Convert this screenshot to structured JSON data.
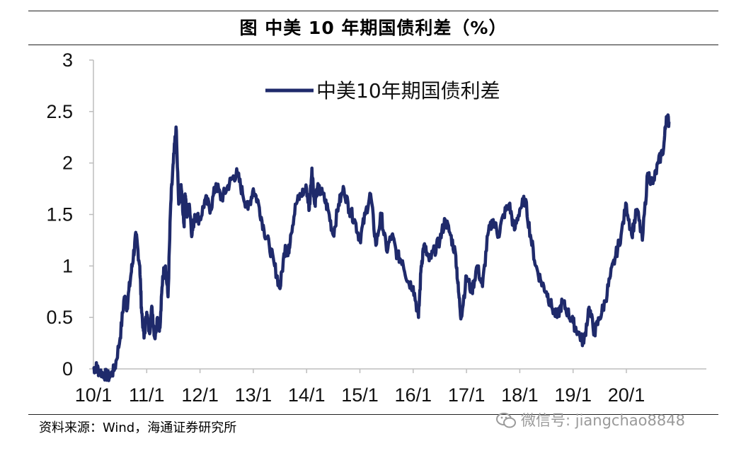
{
  "figure": {
    "title": "图  中美 10 年期国债利差（%）",
    "source": "资料来源：Wind，海通证券研究所",
    "watermark": "微信号: jiangchao8848"
  },
  "chart_data": {
    "type": "line",
    "title": "图  中美 10 年期国债利差（%）",
    "xlabel": "",
    "ylabel": "",
    "ylim": [
      0,
      3
    ],
    "yticks": [
      "0",
      "0.5",
      "1",
      "1.5",
      "2",
      "2.5",
      "3"
    ],
    "xticks": [
      "10/1",
      "11/1",
      "12/1",
      "13/1",
      "14/1",
      "15/1",
      "16/1",
      "17/1",
      "18/1",
      "19/1",
      "20/1"
    ],
    "xrange": [
      2010.0,
      2020.83
    ],
    "legend_position": "top-center",
    "grid": false,
    "series": [
      {
        "name": "中美10年期国债利差",
        "color": "#1f2a6b",
        "x": [
          2010.0,
          2010.05,
          2010.1,
          2010.2,
          2010.3,
          2010.4,
          2010.5,
          2010.58,
          2010.63,
          2010.7,
          2010.75,
          2010.8,
          2010.87,
          2010.9,
          2010.95,
          2011.0,
          2011.05,
          2011.1,
          2011.15,
          2011.2,
          2011.25,
          2011.3,
          2011.35,
          2011.4,
          2011.45,
          2011.5,
          2011.55,
          2011.6,
          2011.65,
          2011.7,
          2011.72,
          2011.75,
          2011.8,
          2011.85,
          2011.9,
          2012.0,
          2012.1,
          2012.2,
          2012.3,
          2012.4,
          2012.5,
          2012.6,
          2012.7,
          2012.8,
          2012.9,
          2013.0,
          2013.1,
          2013.2,
          2013.3,
          2013.4,
          2013.5,
          2013.6,
          2013.65,
          2013.7,
          2013.8,
          2013.9,
          2014.0,
          2014.05,
          2014.1,
          2014.15,
          2014.2,
          2014.3,
          2014.4,
          2014.5,
          2014.6,
          2014.7,
          2014.8,
          2014.9,
          2015.0,
          2015.1,
          2015.2,
          2015.3,
          2015.4,
          2015.5,
          2015.6,
          2015.7,
          2015.8,
          2015.9,
          2016.0,
          2016.1,
          2016.15,
          2016.2,
          2016.3,
          2016.4,
          2016.5,
          2016.6,
          2016.7,
          2016.8,
          2016.85,
          2016.9,
          2017.0,
          2017.1,
          2017.2,
          2017.3,
          2017.4,
          2017.5,
          2017.6,
          2017.7,
          2017.8,
          2017.9,
          2018.0,
          2018.1,
          2018.2,
          2018.3,
          2018.4,
          2018.5,
          2018.6,
          2018.7,
          2018.8,
          2018.9,
          2019.0,
          2019.1,
          2019.2,
          2019.3,
          2019.4,
          2019.5,
          2019.6,
          2019.7,
          2019.8,
          2019.9,
          2020.0,
          2020.1,
          2020.2,
          2020.3,
          2020.4,
          2020.5,
          2020.6,
          2020.7,
          2020.75,
          2020.8
        ],
        "values": [
          0.0,
          0.02,
          -0.02,
          -0.05,
          -0.08,
          0.0,
          0.3,
          0.7,
          0.6,
          0.9,
          1.1,
          1.3,
          1.0,
          0.6,
          0.3,
          0.55,
          0.35,
          0.6,
          0.3,
          0.5,
          0.4,
          0.9,
          1.0,
          0.7,
          1.6,
          2.0,
          2.35,
          1.6,
          1.75,
          1.4,
          1.7,
          1.5,
          1.6,
          1.3,
          1.5,
          1.45,
          1.65,
          1.55,
          1.8,
          1.65,
          1.75,
          1.85,
          1.9,
          1.7,
          1.55,
          1.75,
          1.6,
          1.35,
          1.2,
          1.0,
          0.78,
          1.2,
          1.1,
          1.3,
          1.6,
          1.7,
          1.75,
          1.55,
          1.95,
          1.6,
          1.75,
          1.7,
          1.55,
          1.3,
          1.6,
          1.75,
          1.55,
          1.45,
          1.25,
          1.5,
          1.7,
          1.2,
          1.5,
          1.15,
          1.3,
          1.1,
          1.05,
          0.85,
          0.8,
          0.5,
          1.0,
          1.2,
          1.05,
          1.15,
          1.25,
          1.45,
          1.3,
          1.1,
          0.75,
          0.5,
          0.9,
          0.75,
          1.0,
          0.8,
          1.3,
          1.45,
          1.3,
          1.5,
          1.6,
          1.35,
          1.55,
          1.65,
          1.3,
          1.0,
          0.85,
          0.75,
          0.6,
          0.5,
          0.65,
          0.55,
          0.45,
          0.35,
          0.25,
          0.6,
          0.35,
          0.5,
          0.65,
          0.9,
          1.1,
          1.3,
          1.6,
          1.3,
          1.55,
          1.25,
          1.9,
          1.8,
          2.0,
          2.15,
          2.45,
          2.4
        ]
      }
    ]
  }
}
